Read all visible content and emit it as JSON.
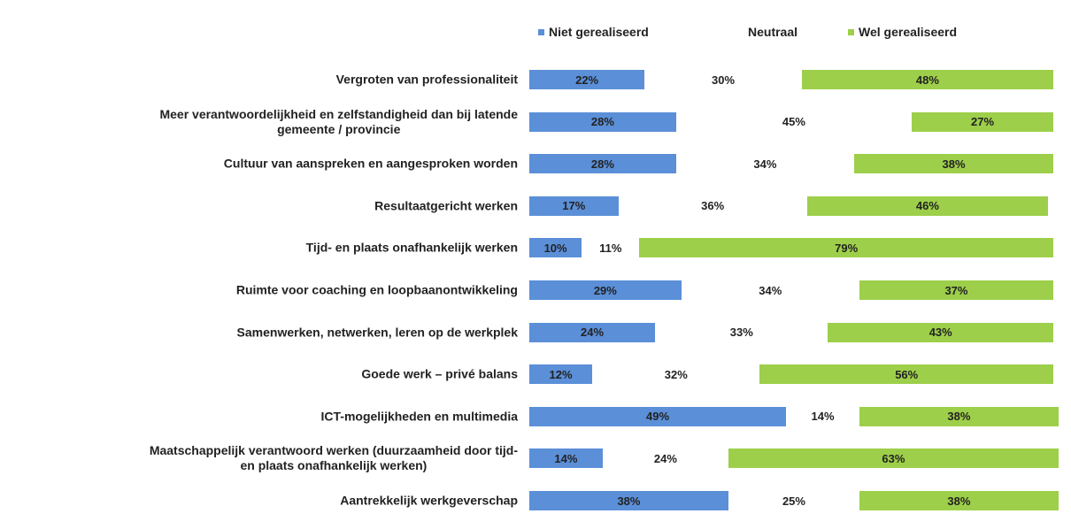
{
  "chart_data": {
    "type": "stacked-bar-horizontal",
    "categories": [
      "Vergroten van professionaliteit",
      "Meer verantwoordelijkheid en zelfstandigheid dan bij latende\ngemeente / provincie",
      "Cultuur van aanspreken en aangesproken worden",
      "Resultaatgericht werken",
      "Tijd- en plaats onafhankelijk werken",
      "Ruimte voor coaching en loopbaanontwikkeling",
      "Samenwerken, netwerken, leren op de werkplek",
      "Goede werk – privé balans",
      "ICT-mogelijkheden en multimedia",
      "Maatschappelijk verantwoord werken (duurzaamheid door tijd-\nen plaats onafhankelijk werken)",
      "Aantrekkelijk werkgeverschap"
    ],
    "series": [
      {
        "name": "Niet gerealiseerd",
        "color": "#5b8fd8",
        "values": [
          22,
          28,
          28,
          17,
          10,
          29,
          24,
          12,
          49,
          14,
          38
        ],
        "value_labels": [
          "22%",
          "28%",
          "28%",
          "17%",
          "10%",
          "29%",
          "24%",
          "12%",
          "49%",
          "14%",
          "38%"
        ]
      },
      {
        "name": "Neutraal",
        "color": "#ffffff",
        "values": [
          30,
          45,
          34,
          36,
          11,
          34,
          33,
          32,
          14,
          24,
          25
        ],
        "value_labels": [
          "30%",
          "45%",
          "34%",
          "36%",
          "11%",
          "34%",
          "33%",
          "32%",
          "14%",
          "24%",
          "25%"
        ]
      },
      {
        "name": "Wel gerealiseerd",
        "color": "#9dcf4a",
        "values": [
          48,
          27,
          38,
          46,
          79,
          37,
          43,
          56,
          38,
          63,
          38
        ],
        "value_labels": [
          "48%",
          "27%",
          "38%",
          "46%",
          "79%",
          "37%",
          "43%",
          "56%",
          "38%",
          "63%",
          "38%"
        ]
      }
    ],
    "legend": "top"
  }
}
